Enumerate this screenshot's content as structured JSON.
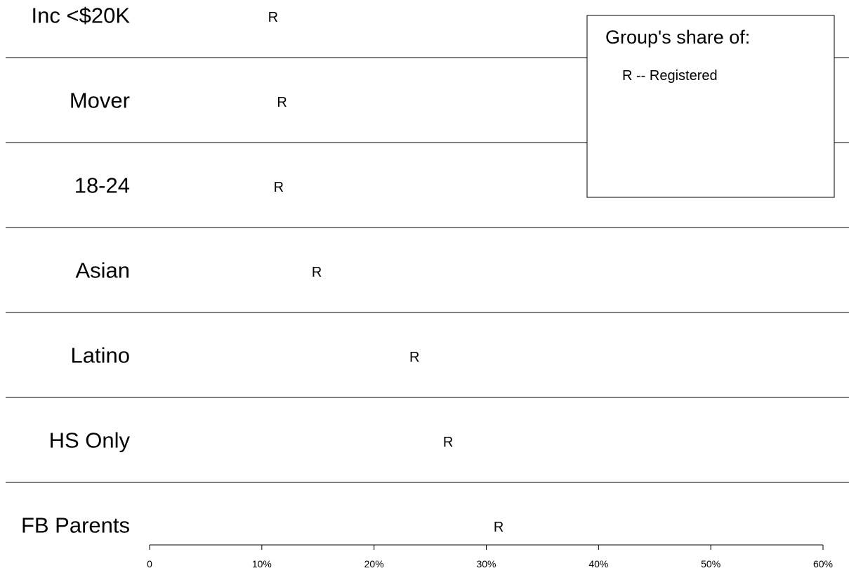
{
  "chart_data": {
    "type": "scatter",
    "marker": "R",
    "categories": [
      "Inc <$20K",
      "Mover",
      "18-24",
      "Asian",
      "Latino",
      "HS Only",
      "FB Parents"
    ],
    "series": [
      {
        "name": "Registered",
        "values": [
          11.0,
          11.8,
          11.5,
          14.9,
          23.6,
          26.6,
          31.1
        ]
      }
    ],
    "xlim": [
      0,
      60
    ],
    "xticks": [
      {
        "value": 0,
        "label": "0"
      },
      {
        "value": 10,
        "label": "10%"
      },
      {
        "value": 20,
        "label": "20%"
      },
      {
        "value": 30,
        "label": "30%"
      },
      {
        "value": 40,
        "label": "40%"
      },
      {
        "value": 50,
        "label": "50%"
      },
      {
        "value": 60,
        "label": "60%"
      }
    ],
    "xlabel": "",
    "ylabel": "",
    "legend": {
      "title": "Group's share of:",
      "items": [
        "R -- Registered"
      ],
      "placement": "top-right"
    },
    "grid": false
  }
}
